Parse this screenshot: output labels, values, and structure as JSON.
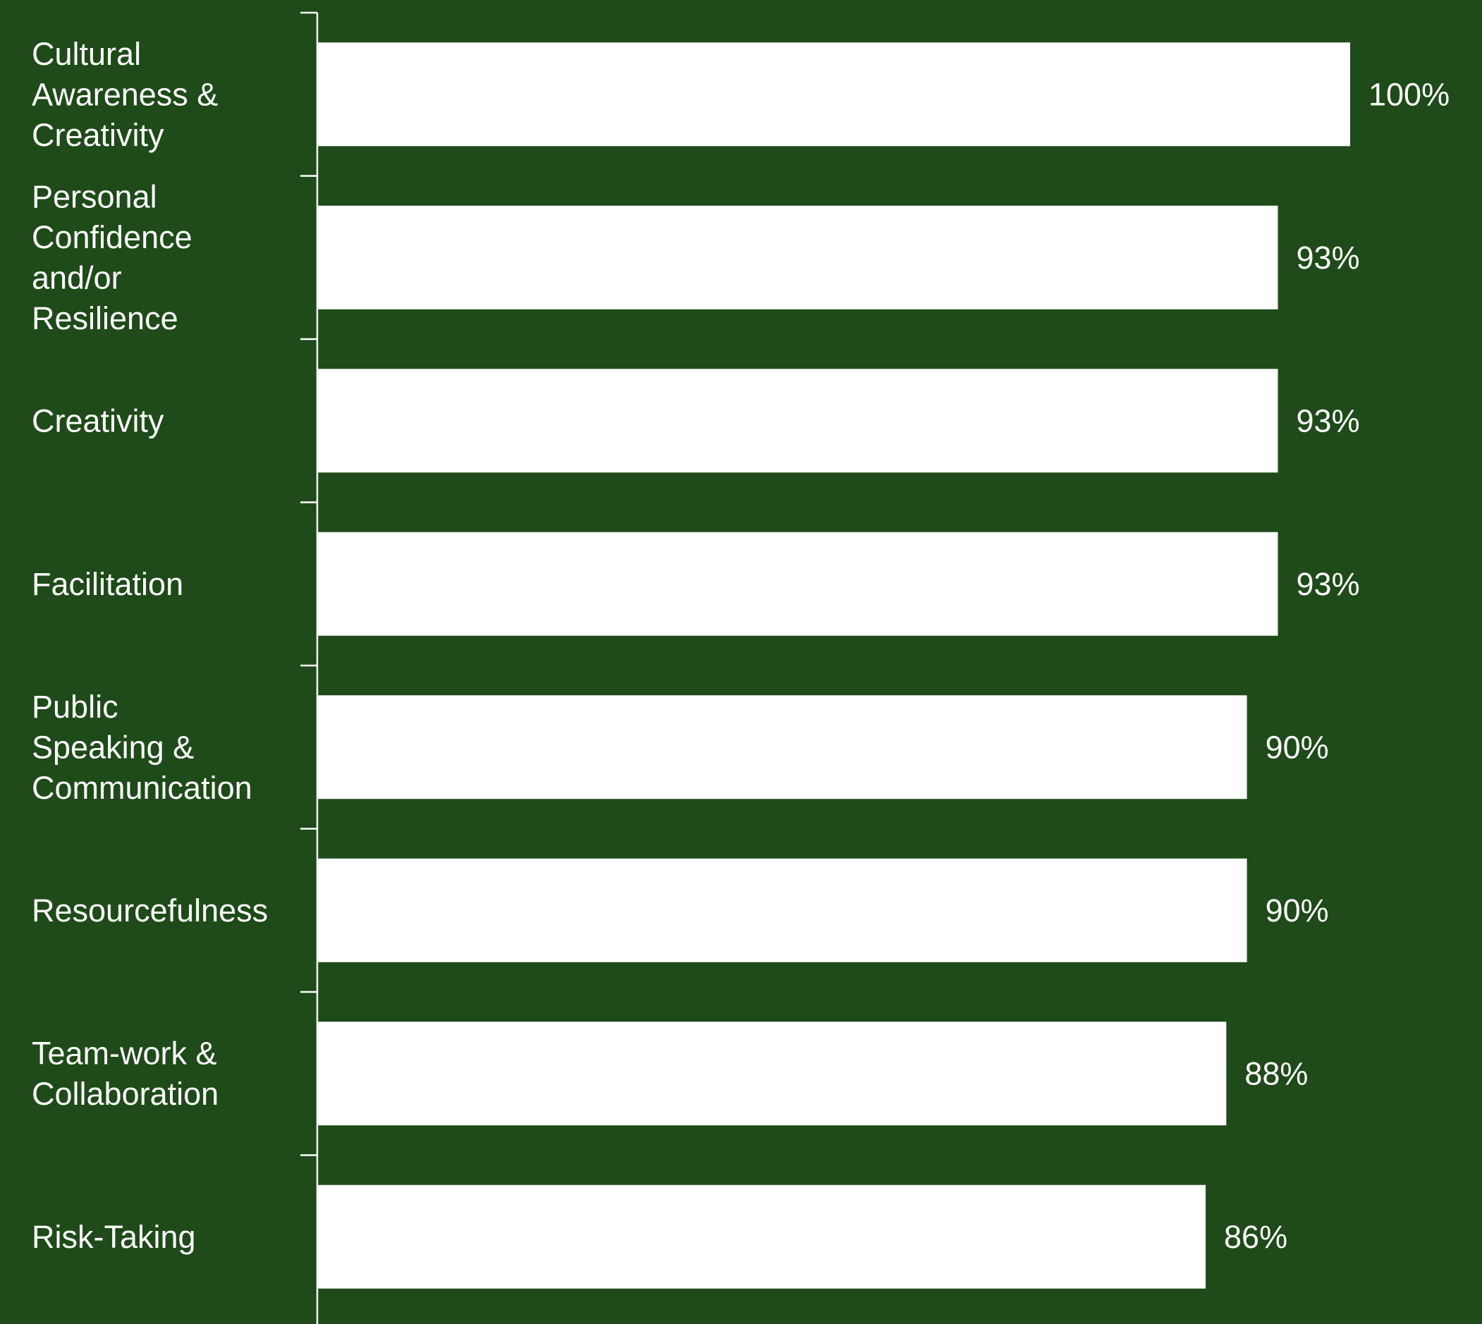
{
  "chart_data": {
    "type": "bar",
    "orientation": "horizontal",
    "categories": [
      "Cultural Awareness & Creativity",
      "Personal Confidence and/or Resilience",
      "Creativity",
      "Facilitation",
      "Public Speaking & Communication",
      "Resourcefulness",
      "Team-work & Collaboration",
      "Risk-Taking"
    ],
    "category_lines": [
      [
        "Cultural",
        "Awareness &",
        "Creativity"
      ],
      [
        "Personal",
        "Confidence",
        "and/or",
        "Resilience"
      ],
      [
        "Creativity"
      ],
      [
        "Facilitation"
      ],
      [
        "Public",
        "Speaking &",
        "Communication"
      ],
      [
        "Resourcefulness"
      ],
      [
        "Team-work &",
        "Collaboration"
      ],
      [
        "Risk-Taking"
      ]
    ],
    "values": [
      100,
      93,
      93,
      93,
      90,
      90,
      88,
      86
    ],
    "value_labels": [
      "100%",
      "93%",
      "93%",
      "93%",
      "90%",
      "90%",
      "88%",
      "86%"
    ],
    "unit": "%",
    "xlim": [
      0,
      100
    ],
    "grid": false,
    "legend": "none",
    "title": "",
    "xlabel": "",
    "ylabel": ""
  },
  "colors": {
    "background": "#1f4a19",
    "bar": "#ffffff",
    "axis": "#ffffff",
    "text": "#ffffff"
  }
}
